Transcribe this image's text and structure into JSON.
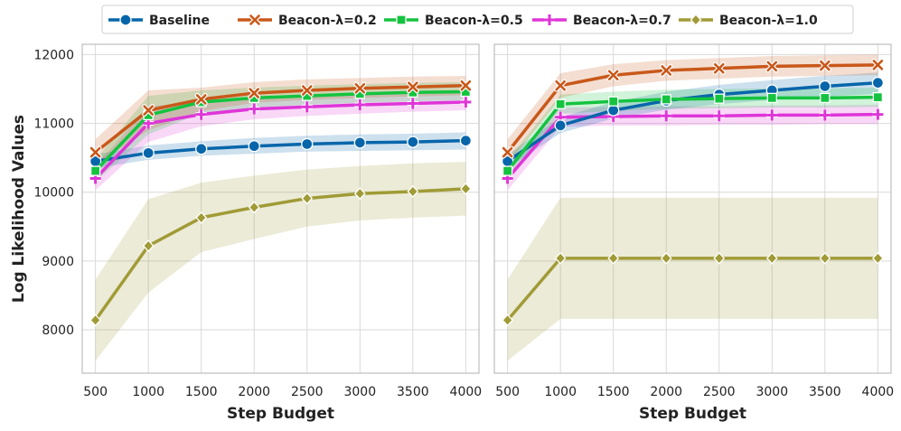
{
  "chart_data": {
    "type": "line",
    "xlabel": "Step Budget",
    "ylabel": "Log Likelihood Values",
    "x": [
      500,
      1000,
      1500,
      2000,
      2500,
      3000,
      3500,
      4000
    ],
    "x_tick_labels": [
      "500",
      "1000",
      "1500",
      "2000",
      "2500",
      "3000",
      "3500",
      "4000"
    ],
    "xlim": [
      375,
      4125
    ],
    "ylim": [
      7370,
      12150
    ],
    "y_ticks": [
      8000,
      9000,
      10000,
      11000,
      12000
    ],
    "y_tick_labels": [
      "8000",
      "9000",
      "10000",
      "11000",
      "12000"
    ],
    "grid": true,
    "legend_position": "top-center",
    "legend": [
      {
        "name": "Baseline",
        "color": "#0766aa",
        "marker": "circle"
      },
      {
        "name": "Beacon-λ=0.2",
        "color": "#c9581a",
        "marker": "x"
      },
      {
        "name": "Beacon-λ=0.5",
        "color": "#14c33f",
        "marker": "square"
      },
      {
        "name": "Beacon-λ=0.7",
        "color": "#df35d8",
        "marker": "plus"
      },
      {
        "name": "Beacon-λ=1.0",
        "color": "#a09b36",
        "marker": "diamond"
      }
    ],
    "panels": [
      {
        "series": [
          {
            "name": "Beaconλ1.0",
            "legend_index": 4,
            "values": [
              8140,
              9220,
              9630,
              9780,
              9910,
              9980,
              10010,
              10050
            ],
            "lower": [
              7550,
              8540,
              9130,
              9320,
              9500,
              9590,
              9630,
              9660
            ],
            "upper": [
              8730,
              9900,
              10140,
              10240,
              10330,
              10380,
              10420,
              10440
            ]
          },
          {
            "name": "Baseline",
            "legend_index": 0,
            "values": [
              10450,
              10570,
              10630,
              10670,
              10700,
              10720,
              10730,
              10750
            ],
            "lower": [
              10350,
              10470,
              10530,
              10560,
              10590,
              10600,
              10610,
              10620
            ],
            "upper": [
              10550,
              10680,
              10740,
              10790,
              10820,
              10840,
              10850,
              10870
            ]
          },
          {
            "name": "Beaconλ0.7",
            "legend_index": 3,
            "values": [
              10200,
              11000,
              11130,
              11210,
              11240,
              11270,
              11290,
              11310
            ],
            "lower": [
              10030,
              10730,
              10960,
              11060,
              11110,
              11140,
              11170,
              11190
            ],
            "upper": [
              10380,
              11250,
              11310,
              11370,
              11390,
              11420,
              11430,
              11450
            ]
          },
          {
            "name": "Beaconλ0.5",
            "legend_index": 2,
            "values": [
              10310,
              11120,
              11310,
              11370,
              11400,
              11430,
              11450,
              11460
            ],
            "lower": [
              10150,
              10840,
              11150,
              11230,
              11270,
              11300,
              11320,
              11340
            ],
            "upper": [
              10470,
              11400,
              11480,
              11520,
              11550,
              11570,
              11590,
              11600
            ]
          },
          {
            "name": "Beaconλ0.2",
            "legend_index": 1,
            "values": [
              10580,
              11190,
              11350,
              11440,
              11480,
              11510,
              11530,
              11550
            ],
            "lower": [
              10400,
              10900,
              11180,
              11300,
              11340,
              11370,
              11390,
              11410
            ],
            "upper": [
              10770,
              11480,
              11520,
              11600,
              11640,
              11660,
              11680,
              11690
            ]
          }
        ]
      },
      {
        "series": [
          {
            "name": "Beaconλ1.0",
            "legend_index": 4,
            "values": [
              8140,
              9040,
              9040,
              9040,
              9040,
              9040,
              9040,
              9040
            ],
            "lower": [
              7550,
              8160,
              8160,
              8160,
              8160,
              8160,
              8160,
              8160
            ],
            "upper": [
              8730,
              9920,
              9920,
              9920,
              9920,
              9920,
              9920,
              9920
            ]
          },
          {
            "name": "Beaconλ0.7",
            "legend_index": 3,
            "values": [
              10200,
              11090,
              11100,
              11110,
              11110,
              11120,
              11120,
              11130
            ],
            "lower": [
              10030,
              10950,
              10970,
              10970,
              10980,
              10980,
              10990,
              10990
            ],
            "upper": [
              10380,
              11230,
              11240,
              11250,
              11250,
              11260,
              11260,
              11270
            ]
          },
          {
            "name": "Baseline",
            "legend_index": 0,
            "values": [
              10450,
              10970,
              11190,
              11330,
              11420,
              11480,
              11540,
              11590
            ],
            "lower": [
              10350,
              10860,
              11070,
              11200,
              11280,
              11340,
              11390,
              11430
            ],
            "upper": [
              10550,
              11090,
              11310,
              11460,
              11560,
              11630,
              11690,
              11740
            ]
          },
          {
            "name": "Beaconλ0.5",
            "legend_index": 2,
            "values": [
              10310,
              11280,
              11320,
              11350,
              11360,
              11370,
              11370,
              11380
            ],
            "lower": [
              10150,
              11140,
              11180,
              11210,
              11220,
              11230,
              11230,
              11240
            ],
            "upper": [
              10470,
              11420,
              11460,
              11490,
              11500,
              11510,
              11510,
              11520
            ]
          },
          {
            "name": "Beaconλ0.2",
            "legend_index": 1,
            "values": [
              10580,
              11550,
              11700,
              11770,
              11800,
              11830,
              11840,
              11850
            ],
            "lower": [
              10400,
              11370,
              11540,
              11620,
              11650,
              11680,
              11690,
              11700
            ],
            "upper": [
              10770,
              11730,
              11860,
              11920,
              11950,
              11980,
              11990,
              12000
            ]
          }
        ]
      }
    ]
  }
}
